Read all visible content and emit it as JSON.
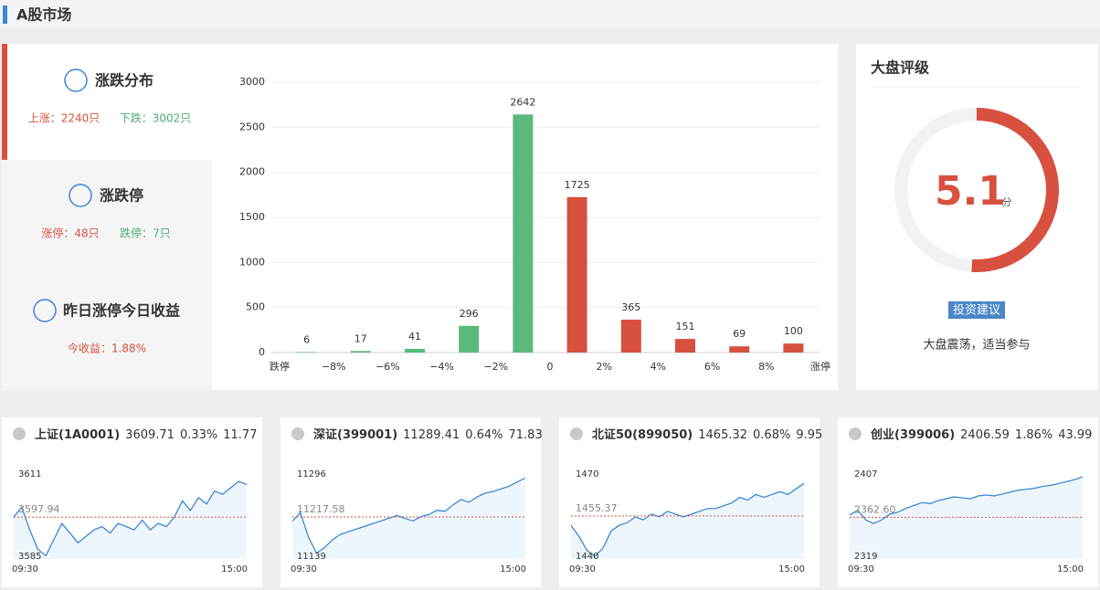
{
  "header": {
    "title": "A股市场"
  },
  "summary": {
    "sections": [
      {
        "title": "涨跌分布",
        "stats": [
          "上涨：2240只",
          "下跌：3002只"
        ]
      },
      {
        "title": "涨跌停",
        "stats": [
          "涨停：48只",
          "跌停：7只"
        ]
      },
      {
        "title": "昨日涨停今日收益",
        "stats": [
          "今收益：1.88%"
        ]
      }
    ]
  },
  "rating": {
    "title": "大盘评级",
    "score": 5.1,
    "unit": "分",
    "range": [
      0,
      10
    ],
    "button": "投资建议",
    "advice": "大盘震荡，适当参与"
  },
  "chart_data": [
    {
      "type": "histogram",
      "bins": [
        "跌停",
        "−8%",
        "−6%",
        "−4%",
        "−2%",
        "0",
        "2%",
        "4%",
        "6%",
        "8%",
        "涨停"
      ],
      "values": [
        6,
        17,
        41,
        296,
        2642,
        1725,
        365,
        151,
        69,
        100
      ],
      "colors": [
        "#5ab97b",
        "#5ab97b",
        "#5ab97b",
        "#5ab97b",
        "#5ab97b",
        "#d8503f",
        "#d8503f",
        "#d8503f",
        "#d8503f",
        "#d8503f"
      ],
      "ylim": [
        0,
        3000
      ],
      "yticks": [
        0,
        500,
        1000,
        1500,
        2000,
        2500,
        3000
      ],
      "grid": true
    },
    {
      "type": "line",
      "title": "上证(1A0001)",
      "stats": [
        "3609.71",
        "0.33%",
        "11.77"
      ],
      "color": "#2b82d4",
      "values": [
        3598,
        3601,
        3594,
        3588,
        3586,
        3591,
        3596,
        3593,
        3590,
        3592,
        3594,
        3595,
        3593,
        3596,
        3595,
        3594,
        3597,
        3594,
        3596,
        3595,
        3598,
        3603,
        3600,
        3604,
        3602,
        3606,
        3605,
        3607,
        3609,
        3608
      ],
      "ylim": [
        3585,
        3611
      ],
      "yticks": [
        3585,
        3611
      ],
      "reference": {
        "value": 3597.94
      },
      "xlabels": [
        "09:30",
        "15:00"
      ]
    },
    {
      "type": "line",
      "title": "深证(399001)",
      "stats": [
        "11289.41",
        "0.64%",
        "71.83"
      ],
      "color": "#2b82d4",
      "values": [
        11210,
        11225,
        11180,
        11150,
        11160,
        11175,
        11185,
        11190,
        11195,
        11200,
        11205,
        11210,
        11215,
        11220,
        11215,
        11210,
        11218,
        11222,
        11230,
        11228,
        11240,
        11250,
        11245,
        11255,
        11262,
        11265,
        11270,
        11275,
        11283,
        11290
      ],
      "ylim": [
        11139,
        11296
      ],
      "yticks": [
        11139,
        11296
      ],
      "reference": {
        "value": 11217.58
      },
      "xlabels": [
        "09:30",
        "15:00"
      ]
    },
    {
      "type": "line",
      "title": "北证50(899050)",
      "stats": [
        "1465.32",
        "0.68%",
        "9.95"
      ],
      "color": "#2b82d4",
      "values": [
        1452,
        1448,
        1443,
        1441,
        1444,
        1450,
        1452,
        1453,
        1455,
        1454,
        1456,
        1455,
        1457,
        1456,
        1455,
        1456,
        1457,
        1458,
        1458,
        1459,
        1460,
        1462,
        1461,
        1463,
        1462,
        1463,
        1464,
        1463,
        1465,
        1467
      ],
      "ylim": [
        1440,
        1470
      ],
      "yticks": [
        1440,
        1470
      ],
      "reference": {
        "value": 1455.37
      },
      "xlabels": [
        "09:30",
        "15:00"
      ]
    },
    {
      "type": "line",
      "title": "创业(399006)",
      "stats": [
        "2406.59",
        "1.86%",
        "43.99"
      ],
      "color": "#2b82d4",
      "values": [
        2365,
        2370,
        2360,
        2356,
        2360,
        2366,
        2368,
        2372,
        2375,
        2378,
        2377,
        2380,
        2382,
        2384,
        2383,
        2382,
        2385,
        2386,
        2385,
        2387,
        2389,
        2391,
        2392,
        2393,
        2395,
        2396,
        2398,
        2400,
        2402,
        2405
      ],
      "ylim": [
        2319,
        2407
      ],
      "yticks": [
        2319,
        2407
      ],
      "reference": {
        "value": 2362.6,
        "label": "2362.60"
      },
      "xlabels": [
        "09:30",
        "15:00"
      ]
    }
  ]
}
